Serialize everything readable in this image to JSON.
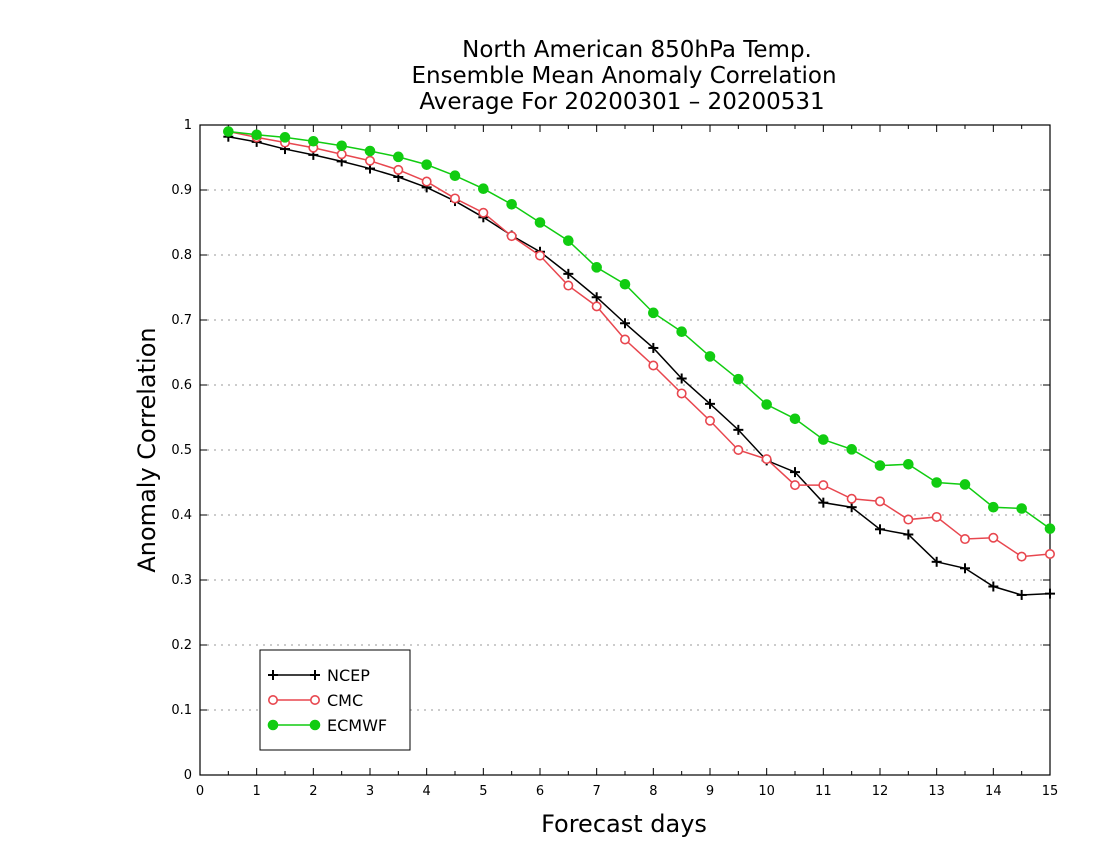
{
  "chart_data": {
    "type": "line",
    "title": [
      "North American 850hPa Temp.",
      "Ensemble Mean Anomaly Correlation",
      "Average For 20200301 – 20200531"
    ],
    "xlabel": "Forecast days",
    "ylabel": "Anomaly Correlation",
    "xlim": [
      0,
      15
    ],
    "ylim": [
      0,
      1
    ],
    "x_ticks": [
      "0",
      "1",
      "2",
      "3",
      "4",
      "5",
      "6",
      "7",
      "8",
      "9",
      "10",
      "11",
      "12",
      "13",
      "14",
      "15"
    ],
    "y_ticks": [
      "0",
      "0.1",
      "0.2",
      "0.3",
      "0.4",
      "0.5",
      "0.6",
      "0.7",
      "0.8",
      "0.9",
      "1"
    ],
    "grid": "horizontal dotted",
    "legend_position": "bottom-left",
    "x": [
      0.5,
      1,
      1.5,
      2,
      2.5,
      3,
      3.5,
      4,
      4.5,
      5,
      5.5,
      6,
      6.5,
      7,
      7.5,
      8,
      8.5,
      9,
      9.5,
      10,
      10.5,
      11,
      11.5,
      12,
      12.5,
      13,
      13.5,
      14,
      14.5,
      15
    ],
    "series": [
      {
        "name": "NCEP",
        "color": "#000000",
        "marker": "plus",
        "values": [
          0.982,
          0.974,
          0.963,
          0.954,
          0.944,
          0.933,
          0.92,
          0.904,
          0.883,
          0.858,
          0.83,
          0.805,
          0.771,
          0.735,
          0.695,
          0.657,
          0.61,
          0.571,
          0.531,
          0.484,
          0.466,
          0.419,
          0.412,
          0.378,
          0.37,
          0.328,
          0.318,
          0.29,
          0.277,
          0.279
        ]
      },
      {
        "name": "CMC",
        "color": "#e8474f",
        "marker": "open-circle",
        "values": [
          0.99,
          0.981,
          0.973,
          0.965,
          0.955,
          0.945,
          0.931,
          0.913,
          0.887,
          0.865,
          0.829,
          0.799,
          0.753,
          0.721,
          0.67,
          0.63,
          0.587,
          0.545,
          0.5,
          0.486,
          0.446,
          0.446,
          0.425,
          0.421,
          0.393,
          0.397,
          0.363,
          0.365,
          0.336,
          0.34
        ]
      },
      {
        "name": "ECMWF",
        "color": "#11cc11",
        "marker": "filled-circle",
        "values": [
          0.99,
          0.985,
          0.981,
          0.975,
          0.968,
          0.96,
          0.951,
          0.939,
          0.922,
          0.902,
          0.878,
          0.85,
          0.822,
          0.781,
          0.755,
          0.711,
          0.682,
          0.644,
          0.609,
          0.57,
          0.548,
          0.516,
          0.501,
          0.476,
          0.478,
          0.45,
          0.447,
          0.412,
          0.41,
          0.379
        ]
      }
    ]
  }
}
